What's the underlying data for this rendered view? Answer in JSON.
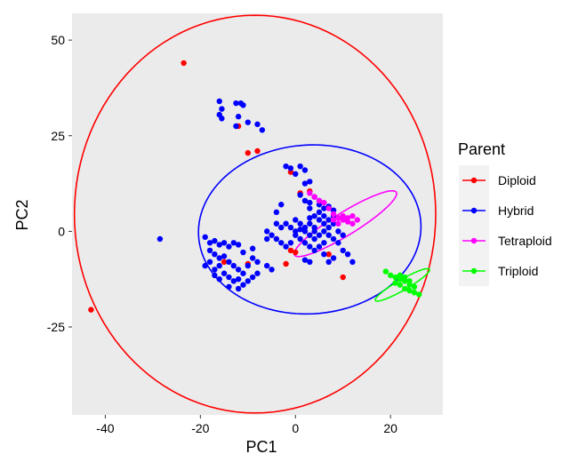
{
  "chart_data": {
    "type": "scatter",
    "xlabel": "PC1",
    "ylabel": "PC2",
    "xlim": [
      -47,
      31
    ],
    "ylim": [
      -48,
      57
    ],
    "x_ticks": [
      -40,
      -20,
      0,
      20
    ],
    "y_ticks": [
      -25,
      0,
      25,
      50
    ],
    "grid": false,
    "panel_background": "#EBEBEB",
    "legend": {
      "title": "Parent",
      "placement": "right",
      "entries": [
        "Diploid",
        "Hybrid",
        "Tetraploid",
        "Triploid"
      ]
    },
    "series": [
      {
        "name": "Diploid",
        "color": "#FF0000",
        "points": [
          [
            -23.5,
            44
          ],
          [
            -43,
            -20.5
          ],
          [
            -12,
            27.5
          ],
          [
            -10,
            20.5
          ],
          [
            -8,
            21
          ],
          [
            -1,
            15.5
          ],
          [
            1,
            10
          ],
          [
            3,
            10.5
          ],
          [
            -1,
            -5
          ],
          [
            0,
            -5.5
          ],
          [
            -2,
            -8.5
          ],
          [
            7,
            -6
          ],
          [
            10,
            -12
          ],
          [
            -10,
            -8.5
          ],
          [
            -15,
            -8
          ]
        ],
        "ellipse": {
          "cx": -8.5,
          "cy": 4.5,
          "rx": 38,
          "ry": 52,
          "angle_deg": 0
        }
      },
      {
        "name": "Hybrid",
        "color": "#0000FF",
        "points": [
          [
            -16,
            34
          ],
          [
            -15.5,
            32
          ],
          [
            -12.5,
            33.5
          ],
          [
            -11.5,
            33.5
          ],
          [
            -11,
            33
          ],
          [
            -16,
            30.5
          ],
          [
            -15.5,
            29.5
          ],
          [
            -12,
            30
          ],
          [
            -10,
            28.5
          ],
          [
            -8,
            28
          ],
          [
            -7,
            26.5
          ],
          [
            -12.5,
            27.5
          ],
          [
            -28.5,
            -2
          ],
          [
            -19,
            -1.5
          ],
          [
            -18,
            -3
          ],
          [
            -17,
            -2.5
          ],
          [
            -16,
            -3.5
          ],
          [
            -15,
            -3
          ],
          [
            -14,
            -4
          ],
          [
            -13,
            -3
          ],
          [
            -12,
            -3.5
          ],
          [
            -18,
            -5
          ],
          [
            -17,
            -6
          ],
          [
            -16,
            -7
          ],
          [
            -15,
            -6.5
          ],
          [
            -14,
            -8
          ],
          [
            -13,
            -9
          ],
          [
            -12,
            -10
          ],
          [
            -11,
            -11
          ],
          [
            -10,
            -9
          ],
          [
            -9,
            -7
          ],
          [
            -8,
            -8
          ],
          [
            -16,
            -9
          ],
          [
            -17,
            -10
          ],
          [
            -15,
            -11
          ],
          [
            -14,
            -12
          ],
          [
            -13,
            -13
          ],
          [
            -12,
            -12.5
          ],
          [
            -11,
            -14
          ],
          [
            -10,
            -13
          ],
          [
            -9,
            -12
          ],
          [
            -8,
            -11
          ],
          [
            -14,
            -14.5
          ],
          [
            -12,
            -15
          ],
          [
            -16,
            -12.5
          ],
          [
            -18,
            -8
          ],
          [
            -19,
            -9
          ],
          [
            -17,
            -11.5
          ],
          [
            -11,
            -5.5
          ],
          [
            -9,
            -4.5
          ],
          [
            -2,
            17
          ],
          [
            -1,
            16.5
          ],
          [
            0,
            15
          ],
          [
            1,
            17
          ],
          [
            2,
            16
          ],
          [
            3,
            13
          ],
          [
            2,
            12.5
          ],
          [
            1,
            9.5
          ],
          [
            2,
            8
          ],
          [
            3,
            7.5
          ],
          [
            4,
            9
          ],
          [
            5,
            8
          ],
          [
            3,
            6
          ],
          [
            -3,
            7
          ],
          [
            -4,
            5
          ],
          [
            -4,
            2
          ],
          [
            -3,
            1
          ],
          [
            -6,
            0
          ],
          [
            -5,
            -1
          ],
          [
            -6,
            -2
          ],
          [
            -4,
            -2
          ],
          [
            -3,
            -3
          ],
          [
            -2,
            -4
          ],
          [
            -1,
            -3
          ],
          [
            0,
            -1
          ],
          [
            1,
            -2
          ],
          [
            2,
            -3
          ],
          [
            3,
            -4
          ],
          [
            4,
            -5
          ],
          [
            5,
            -4
          ],
          [
            6,
            -3
          ],
          [
            -6,
            -9
          ],
          [
            -5,
            -10
          ],
          [
            0,
            3
          ],
          [
            1,
            2
          ],
          [
            2,
            1
          ],
          [
            3,
            2
          ],
          [
            4,
            1
          ],
          [
            5,
            3
          ],
          [
            6,
            2
          ],
          [
            7,
            1
          ],
          [
            8,
            2
          ],
          [
            9,
            0
          ],
          [
            10,
            -1
          ],
          [
            2,
            0
          ],
          [
            3,
            -1
          ],
          [
            4,
            0
          ],
          [
            5,
            -1
          ],
          [
            6,
            0
          ],
          [
            7,
            -1
          ],
          [
            8,
            -2
          ],
          [
            9,
            -3
          ],
          [
            4,
            4
          ],
          [
            5,
            5
          ],
          [
            6,
            4
          ],
          [
            7,
            3
          ],
          [
            8,
            4
          ],
          [
            3,
            3.5
          ],
          [
            1,
            0.5
          ],
          [
            0,
            0
          ],
          [
            -1,
            1
          ],
          [
            -2,
            2
          ],
          [
            6,
            6
          ],
          [
            7,
            6.5
          ],
          [
            8,
            5.5
          ],
          [
            5,
            7
          ],
          [
            4,
            -2
          ],
          [
            6,
            -6
          ],
          [
            7,
            -8
          ],
          [
            8,
            -7
          ],
          [
            3,
            -8
          ],
          [
            2,
            -7.5
          ],
          [
            10,
            -5
          ],
          [
            11,
            -6
          ],
          [
            12,
            -8
          ]
        ],
        "ellipse": {
          "cx": 3,
          "cy": 0.5,
          "rx": 23.5,
          "ry": 22,
          "angle_deg": 15
        }
      },
      {
        "name": "Tetraploid",
        "color": "#FF00FF",
        "points": [
          [
            3,
            10
          ],
          [
            4,
            9
          ],
          [
            5,
            8
          ],
          [
            6,
            7.5
          ],
          [
            7,
            6
          ],
          [
            8,
            4.5
          ],
          [
            9,
            3.5
          ],
          [
            10,
            3
          ],
          [
            11,
            2.5
          ],
          [
            12,
            2
          ],
          [
            9,
            2
          ],
          [
            10,
            4
          ],
          [
            11,
            3.5
          ],
          [
            12,
            4
          ],
          [
            13,
            3
          ],
          [
            8,
            3
          ]
        ],
        "ellipse": {
          "cx": 10.5,
          "cy": 2,
          "rx": 13.5,
          "ry": 2.8,
          "angle_deg": 38
        }
      },
      {
        "name": "Triploid",
        "color": "#00FF00",
        "points": [
          [
            19,
            -10.5
          ],
          [
            20,
            -11.5
          ],
          [
            21,
            -12
          ],
          [
            22,
            -12.5
          ],
          [
            23,
            -13
          ],
          [
            24,
            -14
          ],
          [
            22,
            -14
          ],
          [
            23,
            -15
          ],
          [
            24,
            -15.5
          ],
          [
            25,
            -16
          ],
          [
            26,
            -16.5
          ],
          [
            21,
            -13.5
          ],
          [
            22,
            -11.5
          ],
          [
            23,
            -12
          ],
          [
            24,
            -13
          ],
          [
            25,
            -14.5
          ]
        ],
        "ellipse": {
          "cx": 22.5,
          "cy": -14,
          "rx": 7,
          "ry": 1.3,
          "angle_deg": 36
        }
      }
    ]
  }
}
